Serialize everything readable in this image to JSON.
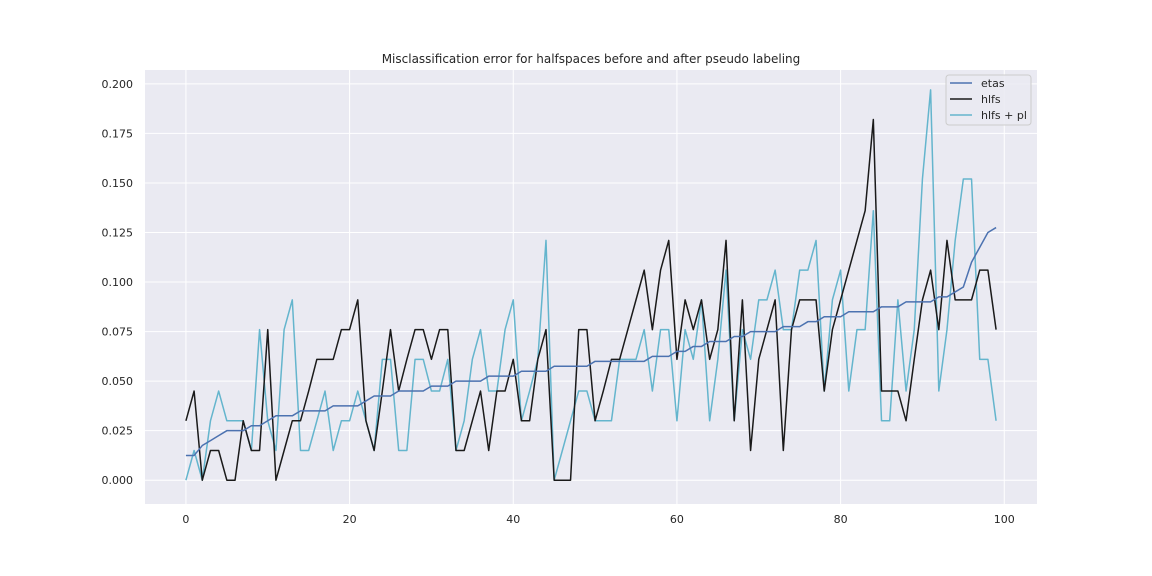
{
  "chart_data": {
    "type": "line",
    "title": "Misclassification error for halfspaces before and after pseudo labeling",
    "xlabel": "",
    "ylabel": "",
    "xlim": [
      -5,
      104
    ],
    "ylim": [
      -0.012,
      0.207
    ],
    "xticks": [
      0,
      20,
      40,
      60,
      80,
      100
    ],
    "xtick_labels": [
      "0",
      "20",
      "40",
      "60",
      "80",
      "100"
    ],
    "yticks": [
      0.0,
      0.025,
      0.05,
      0.075,
      0.1,
      0.125,
      0.15,
      0.175,
      0.2
    ],
    "ytick_labels": [
      "0.000",
      "0.025",
      "0.050",
      "0.075",
      "0.100",
      "0.125",
      "0.150",
      "0.175",
      "0.200"
    ],
    "grid": true,
    "legend_position": "top-right",
    "background": "#eaeaf2",
    "series": [
      {
        "name": "etas",
        "color": "#4c72b0",
        "values": [
          0.0125,
          0.0125,
          0.0175,
          0.02,
          0.0225,
          0.025,
          0.025,
          0.025,
          0.0275,
          0.0275,
          0.03,
          0.0325,
          0.0325,
          0.0325,
          0.035,
          0.035,
          0.035,
          0.035,
          0.0375,
          0.0375,
          0.0375,
          0.0375,
          0.04,
          0.0425,
          0.0425,
          0.0425,
          0.045,
          0.045,
          0.045,
          0.045,
          0.0475,
          0.0475,
          0.0475,
          0.05,
          0.05,
          0.05,
          0.05,
          0.0525,
          0.0525,
          0.0525,
          0.0525,
          0.055,
          0.055,
          0.055,
          0.055,
          0.0575,
          0.0575,
          0.0575,
          0.0575,
          0.0575,
          0.06,
          0.06,
          0.06,
          0.06,
          0.06,
          0.06,
          0.06,
          0.0625,
          0.0625,
          0.0625,
          0.065,
          0.065,
          0.0675,
          0.0675,
          0.07,
          0.07,
          0.07,
          0.0725,
          0.0725,
          0.075,
          0.075,
          0.075,
          0.075,
          0.0775,
          0.0775,
          0.0775,
          0.08,
          0.08,
          0.0825,
          0.0825,
          0.0825,
          0.085,
          0.085,
          0.085,
          0.085,
          0.0875,
          0.0875,
          0.0875,
          0.09,
          0.09,
          0.09,
          0.09,
          0.0925,
          0.0925,
          0.095,
          0.0975,
          0.11,
          0.1175,
          0.125,
          0.1275
        ]
      },
      {
        "name": "hlfs",
        "color": "#1a1a1a",
        "values": [
          0.03,
          0.045,
          0.0,
          0.015,
          0.015,
          0.0,
          0.0,
          0.03,
          0.015,
          0.015,
          0.076,
          0.0,
          0.015,
          0.03,
          0.03,
          0.045,
          0.061,
          0.061,
          0.061,
          0.076,
          0.076,
          0.091,
          0.03,
          0.015,
          0.045,
          0.076,
          0.045,
          0.061,
          0.076,
          0.076,
          0.061,
          0.076,
          0.076,
          0.015,
          0.015,
          0.03,
          0.045,
          0.015,
          0.045,
          0.045,
          0.061,
          0.03,
          0.03,
          0.061,
          0.076,
          0.0,
          0.0,
          0.0,
          0.076,
          0.076,
          0.03,
          0.045,
          0.061,
          0.061,
          0.076,
          0.091,
          0.106,
          0.076,
          0.106,
          0.121,
          0.061,
          0.091,
          0.076,
          0.091,
          0.061,
          0.076,
          0.121,
          0.03,
          0.091,
          0.015,
          0.061,
          0.076,
          0.091,
          0.015,
          0.076,
          0.091,
          0.091,
          0.091,
          0.045,
          0.076,
          0.091,
          0.106,
          0.121,
          0.136,
          0.182,
          0.045,
          0.045,
          0.045,
          0.03,
          0.061,
          0.091,
          0.106,
          0.076,
          0.121,
          0.091,
          0.091,
          0.091,
          0.106,
          0.106,
          0.076
        ]
      },
      {
        "name": "hlfs + pl",
        "color": "#64b5cd",
        "values": [
          0.0,
          0.015,
          0.0,
          0.03,
          0.045,
          0.03,
          0.03,
          0.03,
          0.015,
          0.076,
          0.03,
          0.015,
          0.076,
          0.091,
          0.015,
          0.015,
          0.03,
          0.045,
          0.015,
          0.03,
          0.03,
          0.045,
          0.03,
          0.015,
          0.061,
          0.061,
          0.015,
          0.015,
          0.061,
          0.061,
          0.045,
          0.045,
          0.061,
          0.015,
          0.03,
          0.061,
          0.076,
          0.045,
          0.045,
          0.076,
          0.091,
          0.03,
          0.045,
          0.061,
          0.121,
          0.0,
          0.015,
          0.03,
          0.045,
          0.045,
          0.03,
          0.03,
          0.03,
          0.061,
          0.061,
          0.061,
          0.076,
          0.045,
          0.076,
          0.076,
          0.03,
          0.076,
          0.061,
          0.091,
          0.03,
          0.061,
          0.106,
          0.03,
          0.076,
          0.061,
          0.091,
          0.091,
          0.106,
          0.076,
          0.076,
          0.106,
          0.106,
          0.121,
          0.045,
          0.091,
          0.106,
          0.045,
          0.076,
          0.076,
          0.136,
          0.03,
          0.03,
          0.091,
          0.045,
          0.076,
          0.152,
          0.197,
          0.045,
          0.076,
          0.121,
          0.152,
          0.152,
          0.061,
          0.061,
          0.03
        ]
      }
    ]
  }
}
